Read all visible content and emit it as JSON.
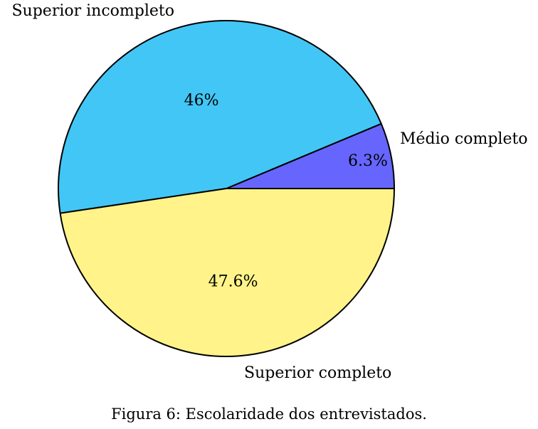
{
  "chart_data": {
    "type": "pie",
    "slices": [
      {
        "label": "Médio completo",
        "value": 6.3,
        "value_label": "6.3%",
        "color": "#6666ff"
      },
      {
        "label": "Superior incompleto",
        "value": 46.0,
        "value_label": "46%",
        "color": "#42c6f5"
      },
      {
        "label": "Superior completo",
        "value": 47.6,
        "value_label": "47.6%",
        "color": "#fff38a"
      }
    ],
    "caption": "Figura 6: Escolaridade dos entrevistados."
  }
}
